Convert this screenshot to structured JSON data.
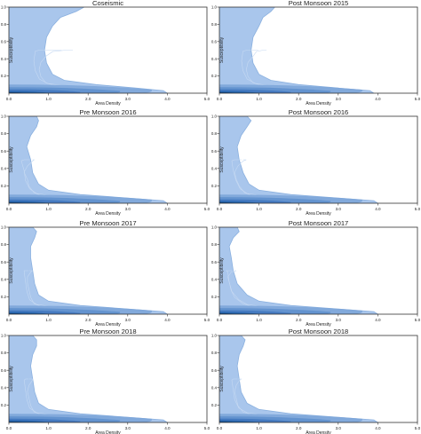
{
  "figure": {
    "colors": {
      "fill": "#a9c6ec",
      "contour": "#8ab0df",
      "dense": "#1f5fa8",
      "axis": "#333333"
    }
  },
  "chart_data": [
    {
      "type": "area",
      "title": "Coseismic",
      "xlabel": "Area Density",
      "ylabel": "Susceptibility",
      "xlim": [
        0,
        5
      ],
      "ylim": [
        0,
        1
      ],
      "xticks": [
        "0.0",
        "1.0",
        "2.0",
        "3.0",
        "4.0",
        "5.0"
      ],
      "yticks": [
        "0.2",
        "0.4",
        "0.6",
        "0.8",
        "1.0"
      ],
      "boundary_x_at_y": [
        {
          "y": 0.0,
          "x": 4.0
        },
        {
          "y": 0.03,
          "x": 3.9
        },
        {
          "y": 0.06,
          "x": 3.2
        },
        {
          "y": 0.1,
          "x": 2.2
        },
        {
          "y": 0.15,
          "x": 1.4
        },
        {
          "y": 0.22,
          "x": 1.1
        },
        {
          "y": 0.35,
          "x": 0.95
        },
        {
          "y": 0.5,
          "x": 0.9
        },
        {
          "y": 0.65,
          "x": 0.95
        },
        {
          "y": 0.78,
          "x": 1.1
        },
        {
          "y": 0.88,
          "x": 1.3
        },
        {
          "y": 0.95,
          "x": 1.7
        },
        {
          "y": 1.0,
          "x": 1.9
        }
      ]
    },
    {
      "type": "area",
      "title": "Post Monsoon 2015",
      "xlabel": "Area Density",
      "ylabel": "Susceptibility",
      "xlim": [
        0,
        5
      ],
      "ylim": [
        0,
        1
      ],
      "xticks": [
        "0.0",
        "1.0",
        "2.0",
        "3.0",
        "4.0",
        "5.0"
      ],
      "yticks": [
        "0.2",
        "0.4",
        "0.6",
        "0.8",
        "1.0"
      ],
      "boundary_x_at_y": [
        {
          "y": 0.0,
          "x": 3.9
        },
        {
          "y": 0.03,
          "x": 3.8
        },
        {
          "y": 0.06,
          "x": 3.0
        },
        {
          "y": 0.1,
          "x": 2.0
        },
        {
          "y": 0.15,
          "x": 1.3
        },
        {
          "y": 0.22,
          "x": 1.0
        },
        {
          "y": 0.35,
          "x": 0.85
        },
        {
          "y": 0.5,
          "x": 0.8
        },
        {
          "y": 0.65,
          "x": 0.85
        },
        {
          "y": 0.78,
          "x": 1.0
        },
        {
          "y": 0.88,
          "x": 1.1
        },
        {
          "y": 0.95,
          "x": 1.3
        },
        {
          "y": 1.0,
          "x": 1.4
        }
      ]
    },
    {
      "type": "area",
      "title": "Pre Monsoon 2016",
      "xlabel": "Area Density",
      "ylabel": "Susceptibility",
      "xlim": [
        0,
        5
      ],
      "ylim": [
        0,
        1
      ],
      "xticks": [
        "0.0",
        "1.0",
        "2.0",
        "3.0",
        "4.0",
        "5.0"
      ],
      "yticks": [
        "0.2",
        "0.4",
        "0.6",
        "0.8",
        "1.0"
      ],
      "boundary_x_at_y": [
        {
          "y": 0.0,
          "x": 4.0
        },
        {
          "y": 0.03,
          "x": 3.9
        },
        {
          "y": 0.06,
          "x": 3.0
        },
        {
          "y": 0.1,
          "x": 1.8
        },
        {
          "y": 0.15,
          "x": 1.0
        },
        {
          "y": 0.22,
          "x": 0.75
        },
        {
          "y": 0.35,
          "x": 0.6
        },
        {
          "y": 0.5,
          "x": 0.55
        },
        {
          "y": 0.65,
          "x": 0.45
        },
        {
          "y": 0.78,
          "x": 0.55
        },
        {
          "y": 0.88,
          "x": 0.7
        },
        {
          "y": 0.95,
          "x": 0.75
        },
        {
          "y": 1.0,
          "x": 0.7
        }
      ]
    },
    {
      "type": "area",
      "title": "Post Monsoon 2016",
      "xlabel": "Area Density",
      "ylabel": "Susceptibility",
      "xlim": [
        0,
        5
      ],
      "ylim": [
        0,
        1
      ],
      "xticks": [
        "0.0",
        "1.0",
        "2.0",
        "3.0",
        "4.0",
        "5.0"
      ],
      "yticks": [
        "0.2",
        "0.4",
        "0.6",
        "0.8",
        "1.0"
      ],
      "boundary_x_at_y": [
        {
          "y": 0.0,
          "x": 4.0
        },
        {
          "y": 0.03,
          "x": 3.9
        },
        {
          "y": 0.06,
          "x": 3.0
        },
        {
          "y": 0.1,
          "x": 1.8
        },
        {
          "y": 0.15,
          "x": 1.0
        },
        {
          "y": 0.22,
          "x": 0.75
        },
        {
          "y": 0.35,
          "x": 0.6
        },
        {
          "y": 0.5,
          "x": 0.5
        },
        {
          "y": 0.65,
          "x": 0.45
        },
        {
          "y": 0.78,
          "x": 0.55
        },
        {
          "y": 0.88,
          "x": 0.7
        },
        {
          "y": 0.95,
          "x": 0.8
        },
        {
          "y": 1.0,
          "x": 0.7
        }
      ]
    },
    {
      "type": "area",
      "title": "Pre Monsoon 2017",
      "xlabel": "Area Density",
      "ylabel": "Susceptibility",
      "xlim": [
        0,
        5
      ],
      "ylim": [
        0,
        1
      ],
      "xticks": [
        "0.0",
        "1.0",
        "2.0",
        "3.0",
        "4.0",
        "5.0"
      ],
      "yticks": [
        "0.2",
        "0.4",
        "0.6",
        "0.8",
        "1.0"
      ],
      "boundary_x_at_y": [
        {
          "y": 0.0,
          "x": 4.0
        },
        {
          "y": 0.03,
          "x": 3.9
        },
        {
          "y": 0.06,
          "x": 3.0
        },
        {
          "y": 0.1,
          "x": 1.8
        },
        {
          "y": 0.15,
          "x": 1.0
        },
        {
          "y": 0.22,
          "x": 0.75
        },
        {
          "y": 0.35,
          "x": 0.65
        },
        {
          "y": 0.5,
          "x": 0.6
        },
        {
          "y": 0.65,
          "x": 0.55
        },
        {
          "y": 0.78,
          "x": 0.55
        },
        {
          "y": 0.88,
          "x": 0.65
        },
        {
          "y": 0.95,
          "x": 0.7
        },
        {
          "y": 1.0,
          "x": 0.6
        }
      ]
    },
    {
      "type": "area",
      "title": "Post Monsoon 2017",
      "xlabel": "Area Density",
      "ylabel": "Susceptibility",
      "xlim": [
        0,
        5
      ],
      "ylim": [
        0,
        1
      ],
      "xticks": [
        "0.0",
        "1.0",
        "2.0",
        "3.0",
        "4.0",
        "5.0"
      ],
      "yticks": [
        "0.2",
        "0.4",
        "0.6",
        "0.8",
        "1.0"
      ],
      "boundary_x_at_y": [
        {
          "y": 0.0,
          "x": 4.0
        },
        {
          "y": 0.03,
          "x": 3.9
        },
        {
          "y": 0.06,
          "x": 3.0
        },
        {
          "y": 0.1,
          "x": 1.8
        },
        {
          "y": 0.15,
          "x": 1.0
        },
        {
          "y": 0.22,
          "x": 0.7
        },
        {
          "y": 0.35,
          "x": 0.45
        },
        {
          "y": 0.5,
          "x": 0.35
        },
        {
          "y": 0.65,
          "x": 0.3
        },
        {
          "y": 0.78,
          "x": 0.25
        },
        {
          "y": 0.88,
          "x": 0.35
        },
        {
          "y": 0.95,
          "x": 0.5
        },
        {
          "y": 1.0,
          "x": 0.45
        }
      ]
    },
    {
      "type": "area",
      "title": "Pre Monsoon 2018",
      "xlabel": "Area Density",
      "ylabel": "Susceptibility",
      "xlim": [
        0,
        5
      ],
      "ylim": [
        0,
        1
      ],
      "xticks": [
        "0.0",
        "1.0",
        "2.0",
        "3.0",
        "4.0",
        "5.0"
      ],
      "yticks": [
        "0.2",
        "0.4",
        "0.6",
        "0.8",
        "1.0"
      ],
      "boundary_x_at_y": [
        {
          "y": 0.0,
          "x": 4.0
        },
        {
          "y": 0.03,
          "x": 3.9
        },
        {
          "y": 0.06,
          "x": 3.0
        },
        {
          "y": 0.1,
          "x": 1.8
        },
        {
          "y": 0.15,
          "x": 1.0
        },
        {
          "y": 0.22,
          "x": 0.75
        },
        {
          "y": 0.35,
          "x": 0.65
        },
        {
          "y": 0.5,
          "x": 0.6
        },
        {
          "y": 0.65,
          "x": 0.55
        },
        {
          "y": 0.78,
          "x": 0.6
        },
        {
          "y": 0.88,
          "x": 0.7
        },
        {
          "y": 0.95,
          "x": 0.7
        },
        {
          "y": 1.0,
          "x": 0.6
        }
      ]
    },
    {
      "type": "area",
      "title": "Post Monsoon 2018",
      "xlabel": "Area Density",
      "ylabel": "Susceptibility",
      "xlim": [
        0,
        5
      ],
      "ylim": [
        0,
        1
      ],
      "xticks": [
        "0.0",
        "1.0",
        "2.0",
        "3.0",
        "4.0",
        "5.0"
      ],
      "yticks": [
        "0.2",
        "0.4",
        "0.6",
        "0.8",
        "1.0"
      ],
      "boundary_x_at_y": [
        {
          "y": 0.0,
          "x": 4.0
        },
        {
          "y": 0.03,
          "x": 3.9
        },
        {
          "y": 0.06,
          "x": 3.0
        },
        {
          "y": 0.1,
          "x": 1.8
        },
        {
          "y": 0.15,
          "x": 1.0
        },
        {
          "y": 0.22,
          "x": 0.7
        },
        {
          "y": 0.35,
          "x": 0.55
        },
        {
          "y": 0.5,
          "x": 0.5
        },
        {
          "y": 0.65,
          "x": 0.45
        },
        {
          "y": 0.78,
          "x": 0.5
        },
        {
          "y": 0.88,
          "x": 0.6
        },
        {
          "y": 0.95,
          "x": 0.65
        },
        {
          "y": 1.0,
          "x": 0.55
        }
      ]
    }
  ]
}
